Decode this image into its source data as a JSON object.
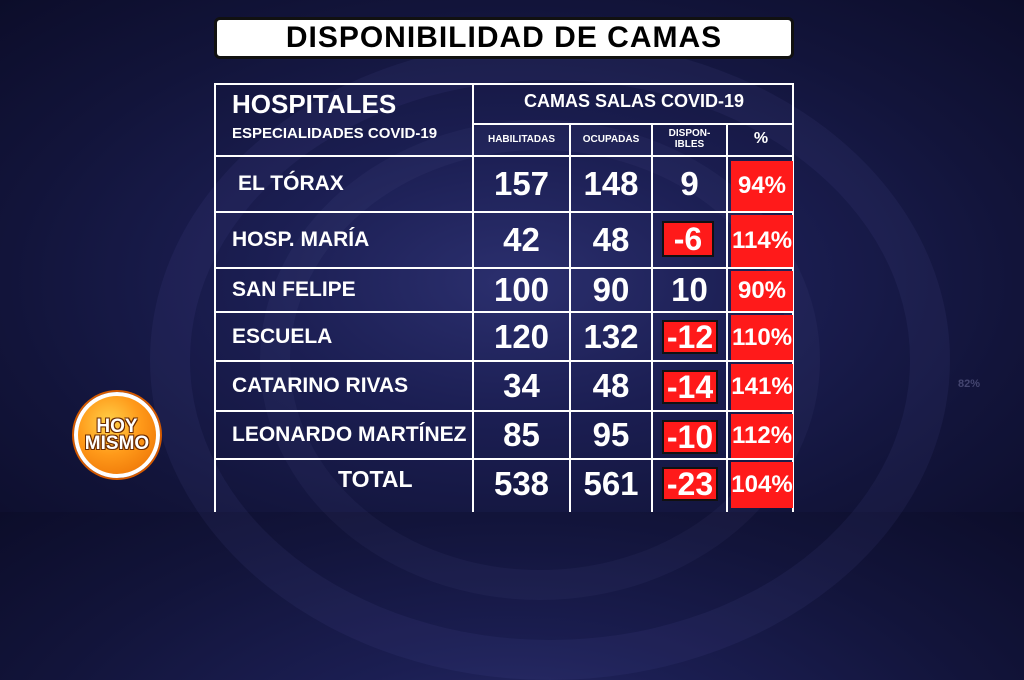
{
  "title": "DISPONIBILIDAD DE CAMAS",
  "header": {
    "hospitales": "HOSPITALES",
    "especialidades": "ESPECIALIDADES COVID-19",
    "camas": "CAMAS SALAS COVID-19",
    "habilitadas": "HABILITADAS",
    "ocupadas": "OCUPADAS",
    "disponibles": "DISPON-\nIBLES",
    "pct": "%"
  },
  "rows": [
    {
      "name": "EL TÓRAX",
      "habilitadas": "157",
      "ocupadas": "148",
      "disponibles": "9",
      "pct": "94%"
    },
    {
      "name": "HOSP. MARÍA",
      "habilitadas": "42",
      "ocupadas": "48",
      "disponibles": "-6",
      "pct": "114%"
    },
    {
      "name": "SAN FELIPE",
      "habilitadas": "100",
      "ocupadas": "90",
      "disponibles": "10",
      "pct": "90%"
    },
    {
      "name": "ESCUELA",
      "habilitadas": "120",
      "ocupadas": "132",
      "disponibles": "-12",
      "pct": "110%"
    },
    {
      "name": "CATARINO RIVAS",
      "habilitadas": "34",
      "ocupadas": "48",
      "disponibles": "-14",
      "pct": "141%"
    },
    {
      "name": "LEONARDO MARTÍNEZ",
      "habilitadas": "85",
      "ocupadas": "95",
      "disponibles": "-10",
      "pct": "112%"
    }
  ],
  "total": {
    "name": "TOTAL",
    "habilitadas": "538",
    "ocupadas": "561",
    "disponibles": "-23",
    "pct": "104%"
  },
  "logo": {
    "line1": "HOY",
    "line2": "MISMO"
  },
  "background_text": "82%",
  "colors": {
    "highlight": "#ff1a1a",
    "background": "#1b1e52"
  }
}
